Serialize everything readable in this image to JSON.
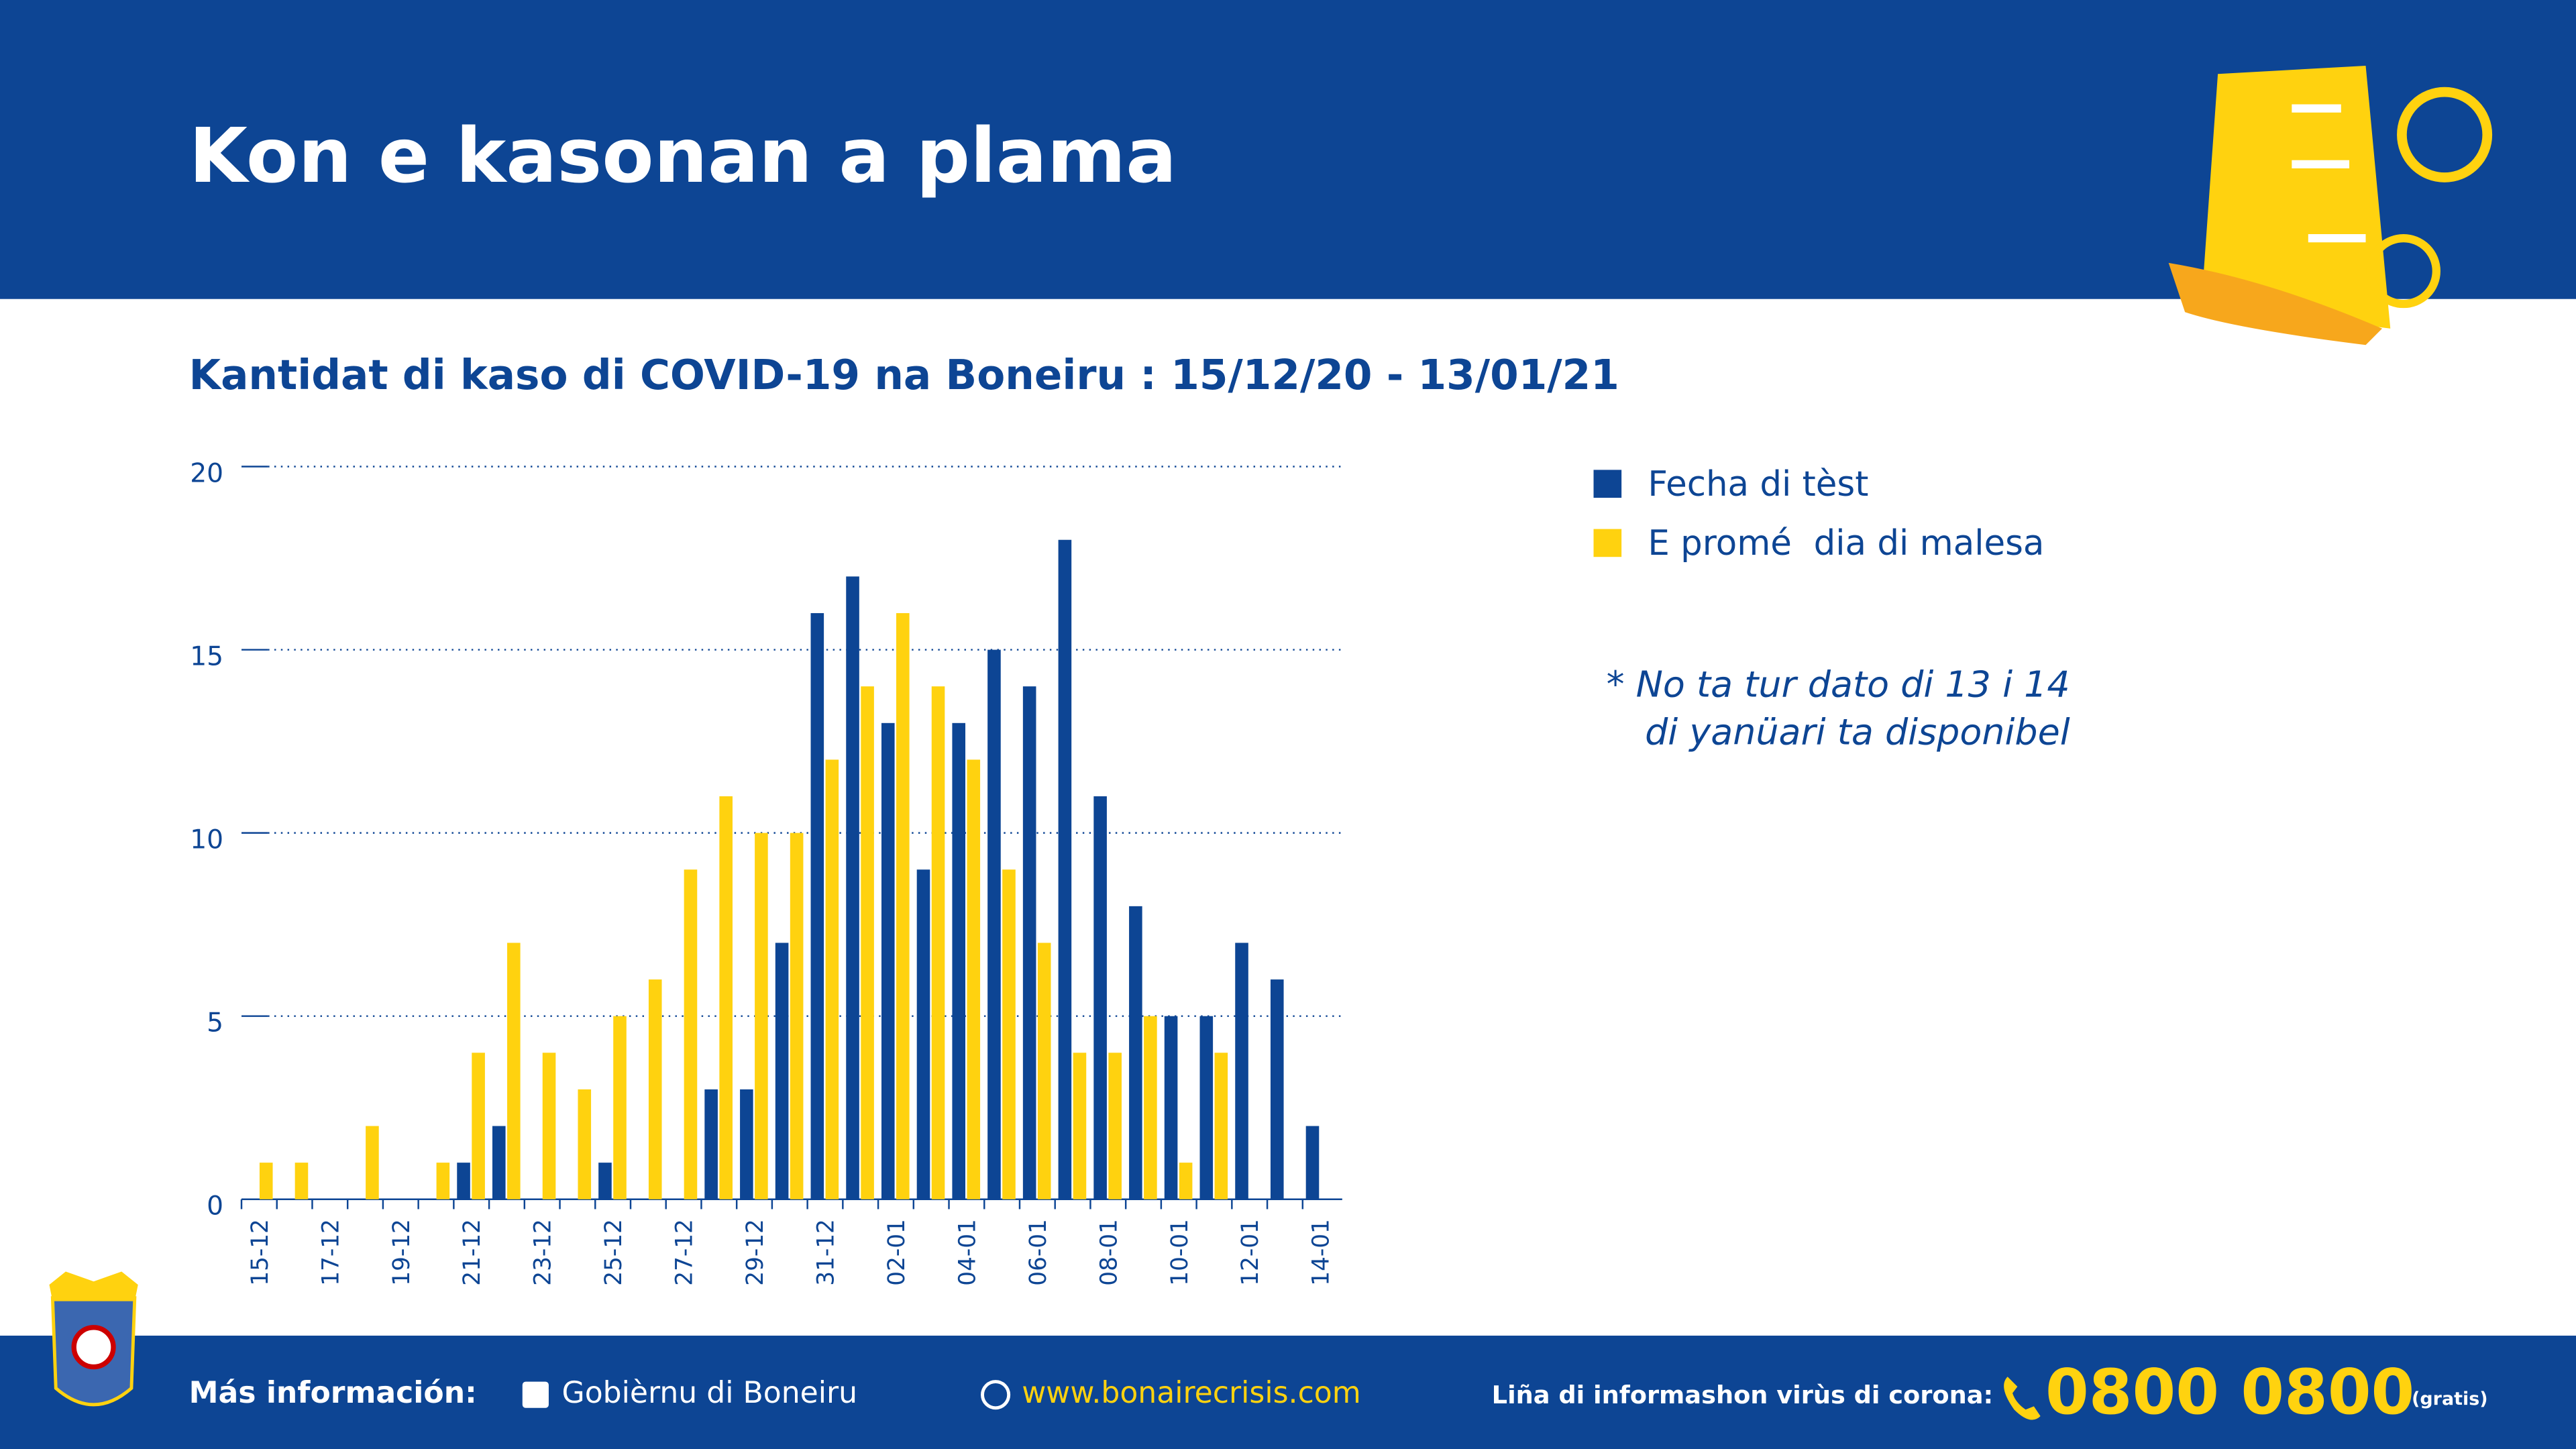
{
  "header": {
    "title": "Kon e kasonan a plama"
  },
  "chart_data": {
    "type": "bar",
    "title": "Kantidat di kaso di COVID-19 na Boneiru : 15/12/20 - 13/01/21",
    "categories": [
      "15-12",
      null,
      "17-12",
      null,
      "19-12",
      null,
      "21-12",
      null,
      "23-12",
      null,
      "25-12",
      null,
      "27-12",
      null,
      "29-12",
      null,
      "31-12",
      null,
      "02-01",
      null,
      "04-01",
      null,
      "06-01",
      null,
      "08-01",
      null,
      "10-01",
      null,
      "12-01",
      null,
      "14-01"
    ],
    "series": [
      {
        "name": "Fecha di tèst",
        "color": "#0d4594",
        "values": [
          0,
          0,
          0,
          0,
          0,
          0,
          1,
          2,
          0,
          0,
          1,
          0,
          0,
          3,
          3,
          7,
          16,
          17,
          13,
          9,
          13,
          15,
          14,
          18,
          11,
          8,
          5,
          5,
          7,
          6,
          2
        ]
      },
      {
        "name": "E promé  dia di malesa",
        "color": "#ffd20f",
        "values": [
          1,
          1,
          0,
          2,
          0,
          1,
          4,
          7,
          4,
          3,
          5,
          6,
          9,
          11,
          10,
          10,
          12,
          14,
          16,
          14,
          12,
          9,
          7,
          4,
          4,
          5,
          1,
          4,
          0,
          0,
          0
        ]
      }
    ],
    "ylim": [
      0,
      20
    ],
    "yticks": [
      0,
      5,
      10,
      15,
      20
    ],
    "grid": true,
    "annotations": [
      "* No ta tur dato di 13 i 14",
      "di yanüari ta disponibel"
    ]
  },
  "footer": {
    "label": "Más información:",
    "facebook": "Gobièrnu di Boneiru",
    "website": "www.bonairecrisis.com",
    "hotline_label": "Liña di informashon virùs di corona:",
    "hotline": "0800 0800",
    "hotline_note": "(gratis)"
  }
}
